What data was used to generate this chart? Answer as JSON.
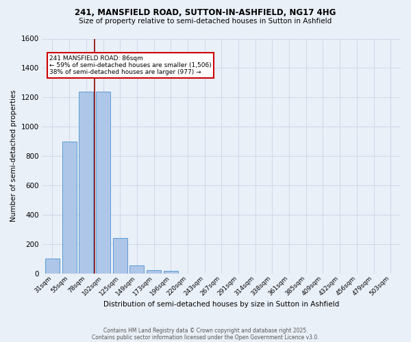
{
  "title1": "241, MANSFIELD ROAD, SUTTON-IN-ASHFIELD, NG17 4HG",
  "title2": "Size of property relative to semi-detached houses in Sutton in Ashfield",
  "xlabel": "Distribution of semi-detached houses by size in Sutton in Ashfield",
  "ylabel": "Number of semi-detached properties",
  "footnote1": "Contains HM Land Registry data © Crown copyright and database right 2025.",
  "footnote2": "Contains public sector information licensed under the Open Government Licence v3.0.",
  "bar_labels": [
    "31sqm",
    "55sqm",
    "78sqm",
    "102sqm",
    "125sqm",
    "149sqm",
    "173sqm",
    "196sqm",
    "220sqm",
    "243sqm",
    "267sqm",
    "291sqm",
    "314sqm",
    "338sqm",
    "361sqm",
    "385sqm",
    "409sqm",
    "432sqm",
    "456sqm",
    "479sqm",
    "503sqm"
  ],
  "bar_values": [
    100,
    900,
    1240,
    1240,
    240,
    55,
    20,
    15,
    0,
    0,
    0,
    0,
    0,
    0,
    0,
    0,
    0,
    0,
    0,
    0,
    0
  ],
  "bar_color": "#aec6e8",
  "bar_edge_color": "#5b9bd5",
  "ylim": [
    0,
    1600
  ],
  "yticks": [
    0,
    200,
    400,
    600,
    800,
    1000,
    1200,
    1400,
    1600
  ],
  "red_line_x": 2.5,
  "annotation_title": "241 MANSFIELD ROAD: 86sqm",
  "annotation_line1": "← 59% of semi-detached houses are smaller (1,506)",
  "annotation_line2": "38% of semi-detached houses are larger (977) →",
  "annotation_box_color": "#ffffff",
  "annotation_border_color": "#cc0000",
  "grid_color": "#d0d8e8",
  "background_color": "#eaf0f8"
}
